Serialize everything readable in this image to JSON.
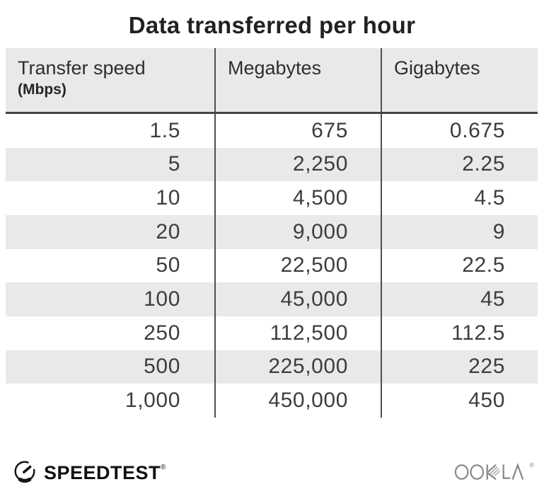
{
  "title": "Data transferred per hour",
  "table": {
    "columns": [
      {
        "label": "Transfer speed",
        "sublabel": "(Mbps)"
      },
      {
        "label": "Megabytes"
      },
      {
        "label": "Gigabytes"
      }
    ],
    "rows": [
      [
        "1.5",
        "675",
        "0.675"
      ],
      [
        "5",
        "2,250",
        "2.25"
      ],
      [
        "10",
        "4,500",
        "4.5"
      ],
      [
        "20",
        "9,000",
        "9"
      ],
      [
        "50",
        "22,500",
        "22.5"
      ],
      [
        "100",
        "45,000",
        "45"
      ],
      [
        "250",
        "112,500",
        "112.5"
      ],
      [
        "500",
        "225,000",
        "225"
      ],
      [
        "1,000",
        "450,000",
        "450"
      ]
    ]
  },
  "chart_data": {
    "type": "table",
    "title": "Data transferred per hour",
    "columns": [
      "Transfer speed (Mbps)",
      "Megabytes",
      "Gigabytes"
    ],
    "rows": [
      [
        1.5,
        675,
        0.675
      ],
      [
        5,
        2250,
        2.25
      ],
      [
        10,
        4500,
        4.5
      ],
      [
        20,
        9000,
        9
      ],
      [
        50,
        22500,
        22.5
      ],
      [
        100,
        45000,
        45
      ],
      [
        250,
        112500,
        112.5
      ],
      [
        500,
        225000,
        225
      ],
      [
        1000,
        450000,
        450
      ]
    ],
    "layout": {
      "striped_rows": true,
      "stripe_color": "#e9e9ec",
      "header_bg": "#e9e9ec"
    }
  },
  "footer": {
    "speedtest_label": "SPEEDTEST",
    "speedtest_trademark": "®",
    "ookla_label": "OOKLA",
    "ookla_trademark": "®"
  },
  "colors": {
    "header_bg": "#e9e9ec",
    "row_stripe": "#e9e9ec",
    "column_divider": "#4f4f4f",
    "header_border": "#444444",
    "title_text": "#212121",
    "cell_text": "#3d3d3d",
    "speedtest_black": "#111111",
    "ookla_gray": "#8a8a8a"
  }
}
